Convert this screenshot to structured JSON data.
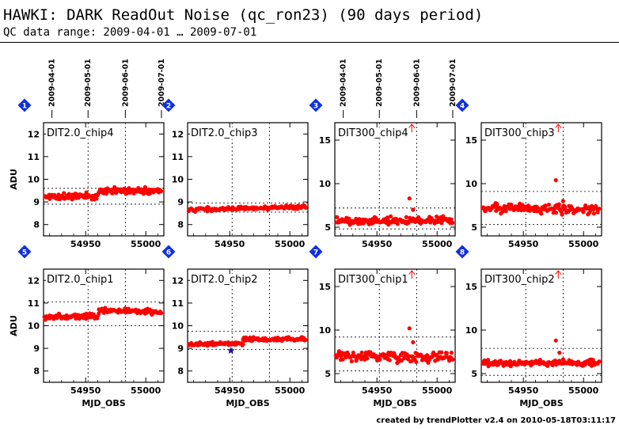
{
  "header": {
    "title": "HAWKI: DARK ReadOut Noise (qc_ron23) (90 days period)",
    "subtitle": "QC data range: 2009-04-01 … 2009-07-01"
  },
  "footer": {
    "text": "created by trendPlotter v2.4 on 2010-05-18T03:11:17"
  },
  "colors": {
    "points": "#ff0000",
    "badge": "#1030e0",
    "star": "#1a1aa0",
    "axis": "#000000"
  },
  "chart_data": [
    {
      "type": "scatter",
      "index": "1",
      "label": "DIT2.0_chip4",
      "xlim": [
        54915,
        55015
      ],
      "ylim": [
        7.5,
        12.5
      ],
      "xticks": [
        54950,
        55000
      ],
      "yticks": [
        8,
        9,
        10,
        11,
        12
      ],
      "ylabel": "ADU",
      "xlabel": "",
      "date_ticks": [
        {
          "label": "2009-04-01",
          "x": 54922
        },
        {
          "label": "2009-05-01",
          "x": 54952
        },
        {
          "label": "2009-06-01",
          "x": 54983
        },
        {
          "label": "2009-07-01",
          "x": 55013
        }
      ],
      "ref_lines": [
        8.9,
        9.6
      ],
      "outliers": [],
      "stars": [],
      "segments": [
        {
          "x": [
            54916,
            54961
          ],
          "y": [
            9.25,
            9.25
          ],
          "jitter": 0.12
        },
        {
          "x": [
            54961,
            55013
          ],
          "y": [
            9.5,
            9.48
          ],
          "jitter": 0.14
        }
      ]
    },
    {
      "type": "scatter",
      "index": "2",
      "label": "DIT2.0_chip3",
      "xlim": [
        54915,
        55015
      ],
      "ylim": [
        7.5,
        12.5
      ],
      "xticks": [
        54950,
        55000
      ],
      "yticks": [
        8,
        9,
        10,
        11,
        12
      ],
      "ylabel": "",
      "xlabel": "",
      "date_ticks": [],
      "ref_lines": [
        8.55,
        8.95
      ],
      "outliers": [],
      "stars": [],
      "segments": [
        {
          "x": [
            54916,
            55013
          ],
          "y": [
            8.65,
            8.78
          ],
          "jitter": 0.07
        }
      ]
    },
    {
      "type": "scatter",
      "index": "3",
      "label": "DIT300_chip4",
      "xlim": [
        54915,
        55015
      ],
      "ylim": [
        4,
        17
      ],
      "xticks": [
        54950,
        55000
      ],
      "yticks": [
        5,
        10,
        15
      ],
      "ylabel": "",
      "xlabel": "",
      "date_ticks": [
        {
          "label": "2009-04-01",
          "x": 54922
        },
        {
          "label": "2009-05-01",
          "x": 54952
        },
        {
          "label": "2009-06-01",
          "x": 54983
        },
        {
          "label": "2009-07-01",
          "x": 55013
        }
      ],
      "ref_lines": [
        4.8,
        7.2
      ],
      "outliers": [
        {
          "x": 54977,
          "y": 8.3
        },
        {
          "x": 54980,
          "y": 7.0
        }
      ],
      "stars": [],
      "segments": [
        {
          "x": [
            54916,
            55013
          ],
          "y": [
            5.7,
            5.8
          ],
          "jitter": 0.35
        }
      ]
    },
    {
      "type": "scatter",
      "index": "4",
      "label": "DIT300_chip3",
      "xlim": [
        54915,
        55015
      ],
      "ylim": [
        4,
        17
      ],
      "xticks": [
        54950,
        55000
      ],
      "yticks": [
        5,
        10,
        15
      ],
      "ylabel": "",
      "xlabel": "",
      "date_ticks": [],
      "ref_lines": [
        5.3,
        9.1
      ],
      "outliers": [
        {
          "x": 54977,
          "y": 10.4
        },
        {
          "x": 54983,
          "y": 8.0
        }
      ],
      "stars": [],
      "segments": [
        {
          "x": [
            54916,
            55013
          ],
          "y": [
            7.2,
            7.0
          ],
          "jitter": 0.5
        }
      ]
    },
    {
      "type": "scatter",
      "index": "5",
      "label": "DIT2.0_chip1",
      "xlim": [
        54915,
        55015
      ],
      "ylim": [
        7.5,
        12.5
      ],
      "xticks": [
        54950,
        55000
      ],
      "yticks": [
        8,
        9,
        10,
        11,
        12
      ],
      "ylabel": "ADU",
      "xlabel": "MJD_OBS",
      "date_ticks": [],
      "ref_lines": [
        10.0,
        11.05
      ],
      "outliers": [],
      "stars": [],
      "segments": [
        {
          "x": [
            54916,
            54961
          ],
          "y": [
            10.35,
            10.45
          ],
          "jitter": 0.12
        },
        {
          "x": [
            54961,
            55013
          ],
          "y": [
            10.7,
            10.6
          ],
          "jitter": 0.1
        }
      ]
    },
    {
      "type": "scatter",
      "index": "6",
      "label": "DIT2.0_chip2",
      "xlim": [
        54915,
        55015
      ],
      "ylim": [
        7.5,
        12.5
      ],
      "xticks": [
        54950,
        55000
      ],
      "yticks": [
        8,
        9,
        10,
        11,
        12
      ],
      "ylabel": "",
      "xlabel": "MJD_OBS",
      "date_ticks": [],
      "ref_lines": [
        8.95,
        9.75
      ],
      "outliers": [],
      "stars": [
        {
          "x": 54951,
          "y": 8.9
        }
      ],
      "segments": [
        {
          "x": [
            54916,
            54961
          ],
          "y": [
            9.2,
            9.2
          ],
          "jitter": 0.06
        },
        {
          "x": [
            54961,
            55013
          ],
          "y": [
            9.4,
            9.4
          ],
          "jitter": 0.07
        }
      ]
    },
    {
      "type": "scatter",
      "index": "7",
      "label": "DIT300_chip1",
      "xlim": [
        54915,
        55015
      ],
      "ylim": [
        4,
        17
      ],
      "xticks": [
        54950,
        55000
      ],
      "yticks": [
        5,
        10,
        15
      ],
      "ylabel": "",
      "xlabel": "MJD_OBS",
      "date_ticks": [],
      "ref_lines": [
        5.3,
        9.2
      ],
      "outliers": [
        {
          "x": 54977,
          "y": 10.2
        },
        {
          "x": 54980,
          "y": 8.6
        }
      ],
      "stars": [],
      "segments": [
        {
          "x": [
            54916,
            55013
          ],
          "y": [
            7.1,
            6.9
          ],
          "jitter": 0.5
        }
      ]
    },
    {
      "type": "scatter",
      "index": "8",
      "label": "DIT300_chip2",
      "xlim": [
        54915,
        55015
      ],
      "ylim": [
        4,
        17
      ],
      "xticks": [
        54950,
        55000
      ],
      "yticks": [
        5,
        10,
        15
      ],
      "ylabel": "",
      "xlabel": "MJD_OBS",
      "date_ticks": [],
      "ref_lines": [
        4.8,
        7.9
      ],
      "outliers": [
        {
          "x": 54977,
          "y": 8.8
        },
        {
          "x": 54980,
          "y": 7.4
        }
      ],
      "stars": [],
      "segments": [
        {
          "x": [
            54916,
            55013
          ],
          "y": [
            6.2,
            6.2
          ],
          "jitter": 0.3
        }
      ]
    }
  ]
}
